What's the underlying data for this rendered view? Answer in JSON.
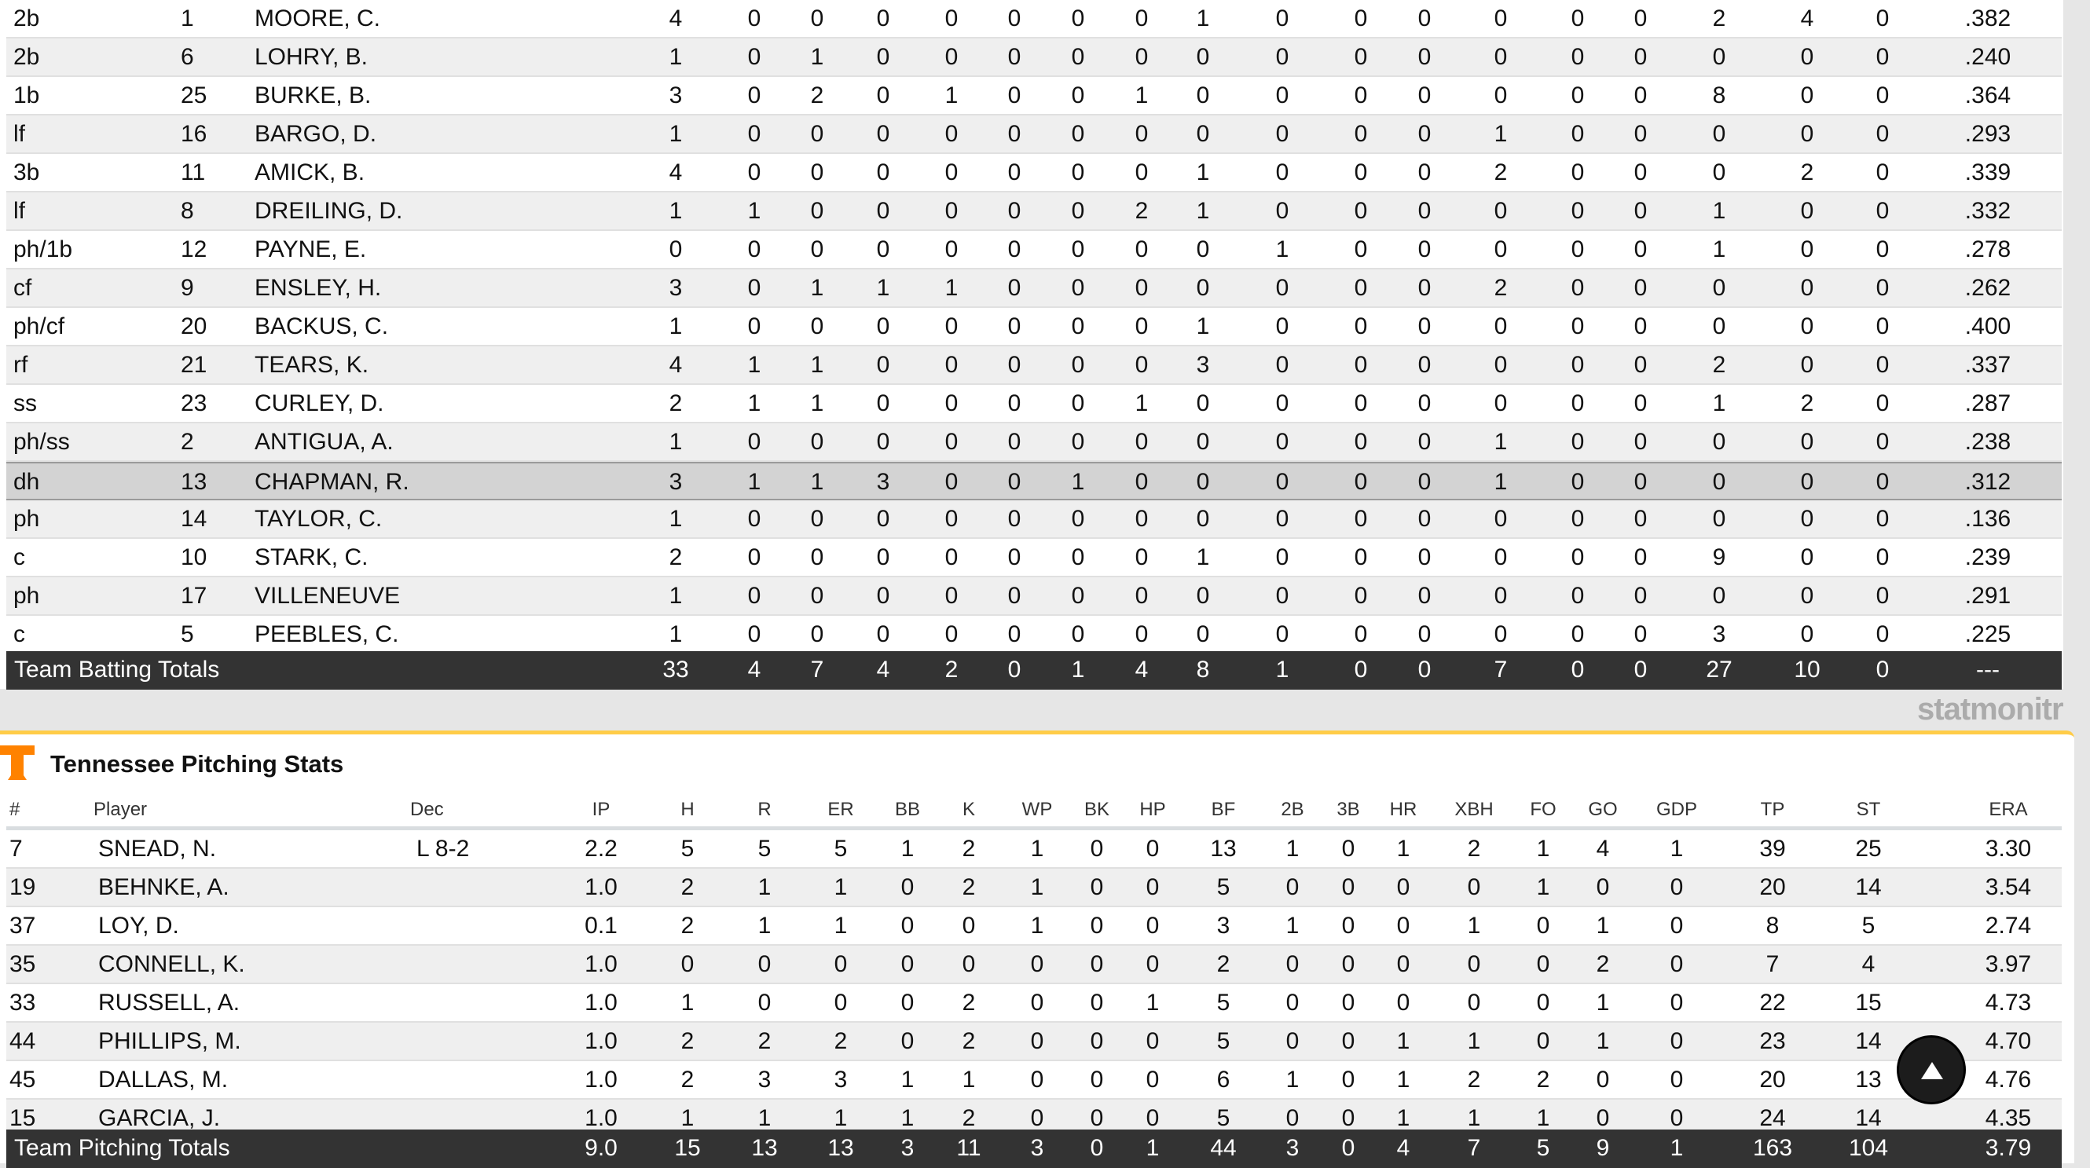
{
  "batting": {
    "rows": [
      {
        "pos": "2b",
        "num": "1",
        "name": "MOORE, C.",
        "stats": [
          "4",
          "0",
          "0",
          "0",
          "0",
          "0",
          "0",
          "0",
          "1",
          "0",
          "0",
          "0",
          "0",
          "0",
          "0",
          "2",
          "4",
          "0"
        ],
        "avg": ".382"
      },
      {
        "pos": "2b",
        "num": "6",
        "name": "LOHRY, B.",
        "stats": [
          "1",
          "0",
          "1",
          "0",
          "0",
          "0",
          "0",
          "0",
          "0",
          "0",
          "0",
          "0",
          "0",
          "0",
          "0",
          "0",
          "0",
          "0"
        ],
        "avg": ".240"
      },
      {
        "pos": "1b",
        "num": "25",
        "name": "BURKE, B.",
        "stats": [
          "3",
          "0",
          "2",
          "0",
          "1",
          "0",
          "0",
          "1",
          "0",
          "0",
          "0",
          "0",
          "0",
          "0",
          "0",
          "8",
          "0",
          "0"
        ],
        "avg": ".364"
      },
      {
        "pos": "lf",
        "num": "16",
        "name": "BARGO, D.",
        "stats": [
          "1",
          "0",
          "0",
          "0",
          "0",
          "0",
          "0",
          "0",
          "0",
          "0",
          "0",
          "0",
          "1",
          "0",
          "0",
          "0",
          "0",
          "0"
        ],
        "avg": ".293"
      },
      {
        "pos": "3b",
        "num": "11",
        "name": "AMICK, B.",
        "stats": [
          "4",
          "0",
          "0",
          "0",
          "0",
          "0",
          "0",
          "0",
          "1",
          "0",
          "0",
          "0",
          "2",
          "0",
          "0",
          "0",
          "2",
          "0"
        ],
        "avg": ".339"
      },
      {
        "pos": "lf",
        "num": "8",
        "name": "DREILING, D.",
        "stats": [
          "1",
          "1",
          "0",
          "0",
          "0",
          "0",
          "0",
          "2",
          "1",
          "0",
          "0",
          "0",
          "0",
          "0",
          "0",
          "1",
          "0",
          "0"
        ],
        "avg": ".332"
      },
      {
        "pos": "ph/1b",
        "num": "12",
        "name": "PAYNE, E.",
        "stats": [
          "0",
          "0",
          "0",
          "0",
          "0",
          "0",
          "0",
          "0",
          "0",
          "1",
          "0",
          "0",
          "0",
          "0",
          "0",
          "1",
          "0",
          "0"
        ],
        "avg": ".278"
      },
      {
        "pos": "cf",
        "num": "9",
        "name": "ENSLEY, H.",
        "stats": [
          "3",
          "0",
          "1",
          "1",
          "1",
          "0",
          "0",
          "0",
          "0",
          "0",
          "0",
          "0",
          "2",
          "0",
          "0",
          "0",
          "0",
          "0"
        ],
        "avg": ".262"
      },
      {
        "pos": "ph/cf",
        "num": "20",
        "name": "BACKUS, C.",
        "stats": [
          "1",
          "0",
          "0",
          "0",
          "0",
          "0",
          "0",
          "0",
          "1",
          "0",
          "0",
          "0",
          "0",
          "0",
          "0",
          "0",
          "0",
          "0"
        ],
        "avg": ".400"
      },
      {
        "pos": "rf",
        "num": "21",
        "name": "TEARS, K.",
        "stats": [
          "4",
          "1",
          "1",
          "0",
          "0",
          "0",
          "0",
          "0",
          "3",
          "0",
          "0",
          "0",
          "0",
          "0",
          "0",
          "2",
          "0",
          "0"
        ],
        "avg": ".337"
      },
      {
        "pos": "ss",
        "num": "23",
        "name": "CURLEY, D.",
        "stats": [
          "2",
          "1",
          "1",
          "0",
          "0",
          "0",
          "0",
          "1",
          "0",
          "0",
          "0",
          "0",
          "0",
          "0",
          "0",
          "1",
          "2",
          "0"
        ],
        "avg": ".287"
      },
      {
        "pos": "ph/ss",
        "num": "2",
        "name": "ANTIGUA, A.",
        "stats": [
          "1",
          "0",
          "0",
          "0",
          "0",
          "0",
          "0",
          "0",
          "0",
          "0",
          "0",
          "0",
          "1",
          "0",
          "0",
          "0",
          "0",
          "0"
        ],
        "avg": ".238"
      },
      {
        "pos": "dh",
        "num": "13",
        "name": "CHAPMAN, R.",
        "stats": [
          "3",
          "1",
          "1",
          "3",
          "0",
          "0",
          "1",
          "0",
          "0",
          "0",
          "0",
          "0",
          "1",
          "0",
          "0",
          "0",
          "0",
          "0"
        ],
        "avg": ".312",
        "highlighted": true
      },
      {
        "pos": "ph",
        "num": "14",
        "name": "TAYLOR, C.",
        "stats": [
          "1",
          "0",
          "0",
          "0",
          "0",
          "0",
          "0",
          "0",
          "0",
          "0",
          "0",
          "0",
          "0",
          "0",
          "0",
          "0",
          "0",
          "0"
        ],
        "avg": ".136"
      },
      {
        "pos": "c",
        "num": "10",
        "name": "STARK, C.",
        "stats": [
          "2",
          "0",
          "0",
          "0",
          "0",
          "0",
          "0",
          "0",
          "1",
          "0",
          "0",
          "0",
          "0",
          "0",
          "0",
          "9",
          "0",
          "0"
        ],
        "avg": ".239"
      },
      {
        "pos": "ph",
        "num": "17",
        "name": "VILLENEUVE",
        "stats": [
          "1",
          "0",
          "0",
          "0",
          "0",
          "0",
          "0",
          "0",
          "0",
          "0",
          "0",
          "0",
          "0",
          "0",
          "0",
          "0",
          "0",
          "0"
        ],
        "avg": ".291"
      },
      {
        "pos": "c",
        "num": "5",
        "name": "PEEBLES, C.",
        "stats": [
          "1",
          "0",
          "0",
          "0",
          "0",
          "0",
          "0",
          "0",
          "0",
          "0",
          "0",
          "0",
          "0",
          "0",
          "0",
          "3",
          "0",
          "0"
        ],
        "avg": ".225"
      }
    ],
    "totals": {
      "label": "Team Batting Totals",
      "stats": [
        "33",
        "4",
        "7",
        "4",
        "2",
        "0",
        "1",
        "4",
        "8",
        "1",
        "0",
        "0",
        "7",
        "0",
        "0",
        "27",
        "10",
        "0"
      ],
      "avg": "---"
    }
  },
  "pitching": {
    "title": "Tennessee Pitching Stats",
    "logo": "tennessee-power-t-logo",
    "headers": {
      "num": "#",
      "player": "Player",
      "dec": "Dec",
      "stats": [
        "IP",
        "H",
        "R",
        "ER",
        "BB",
        "K",
        "WP",
        "BK",
        "HP",
        "BF",
        "2B",
        "3B",
        "HR",
        "XBH",
        "FO",
        "GO",
        "GDP",
        "TP",
        "ST",
        "ERA"
      ]
    },
    "rows": [
      {
        "num": "7",
        "name": "SNEAD, N.",
        "dec": "L 8-2",
        "stats": [
          "2.2",
          "5",
          "5",
          "5",
          "1",
          "2",
          "1",
          "0",
          "0",
          "13",
          "1",
          "0",
          "1",
          "2",
          "1",
          "4",
          "1",
          "39",
          "25",
          "3.30"
        ]
      },
      {
        "num": "19",
        "name": "BEHNKE, A.",
        "dec": "",
        "stats": [
          "1.0",
          "2",
          "1",
          "1",
          "0",
          "2",
          "1",
          "0",
          "0",
          "5",
          "0",
          "0",
          "0",
          "0",
          "1",
          "0",
          "0",
          "20",
          "14",
          "3.54"
        ]
      },
      {
        "num": "37",
        "name": "LOY, D.",
        "dec": "",
        "stats": [
          "0.1",
          "2",
          "1",
          "1",
          "0",
          "0",
          "1",
          "0",
          "0",
          "3",
          "1",
          "0",
          "0",
          "1",
          "0",
          "1",
          "0",
          "8",
          "5",
          "2.74"
        ]
      },
      {
        "num": "35",
        "name": "CONNELL, K.",
        "dec": "",
        "stats": [
          "1.0",
          "0",
          "0",
          "0",
          "0",
          "0",
          "0",
          "0",
          "0",
          "2",
          "0",
          "0",
          "0",
          "0",
          "0",
          "2",
          "0",
          "7",
          "4",
          "3.97"
        ]
      },
      {
        "num": "33",
        "name": "RUSSELL, A.",
        "dec": "",
        "stats": [
          "1.0",
          "1",
          "0",
          "0",
          "0",
          "2",
          "0",
          "0",
          "1",
          "5",
          "0",
          "0",
          "0",
          "0",
          "0",
          "1",
          "0",
          "22",
          "15",
          "4.73"
        ]
      },
      {
        "num": "44",
        "name": "PHILLIPS, M.",
        "dec": "",
        "stats": [
          "1.0",
          "2",
          "2",
          "2",
          "0",
          "2",
          "0",
          "0",
          "0",
          "5",
          "0",
          "0",
          "1",
          "1",
          "0",
          "1",
          "0",
          "23",
          "14",
          "4.70"
        ]
      },
      {
        "num": "45",
        "name": "DALLAS, M.",
        "dec": "",
        "stats": [
          "1.0",
          "2",
          "3",
          "3",
          "1",
          "1",
          "0",
          "0",
          "0",
          "6",
          "1",
          "0",
          "1",
          "2",
          "2",
          "0",
          "0",
          "20",
          "13",
          "4.76"
        ]
      },
      {
        "num": "15",
        "name": "GARCIA, J.",
        "dec": "",
        "stats": [
          "1.0",
          "1",
          "1",
          "1",
          "1",
          "2",
          "0",
          "0",
          "0",
          "5",
          "0",
          "0",
          "1",
          "1",
          "1",
          "0",
          "0",
          "24",
          "14",
          "4.35"
        ]
      }
    ],
    "totals": {
      "label": "Team Pitching Totals",
      "stats": [
        "9.0",
        "15",
        "13",
        "13",
        "3",
        "11",
        "3",
        "0",
        "1",
        "44",
        "3",
        "0",
        "4",
        "7",
        "5",
        "9",
        "1",
        "163",
        "104",
        "3.79"
      ]
    }
  },
  "scroll_top": {
    "icon": "arrow-up-icon"
  },
  "watermark": "statmonitr",
  "colors": {
    "accent": "#ffcc48",
    "logo": "#ff8200",
    "totals_bg": "#333333",
    "highlight": "#d3d3d3"
  }
}
